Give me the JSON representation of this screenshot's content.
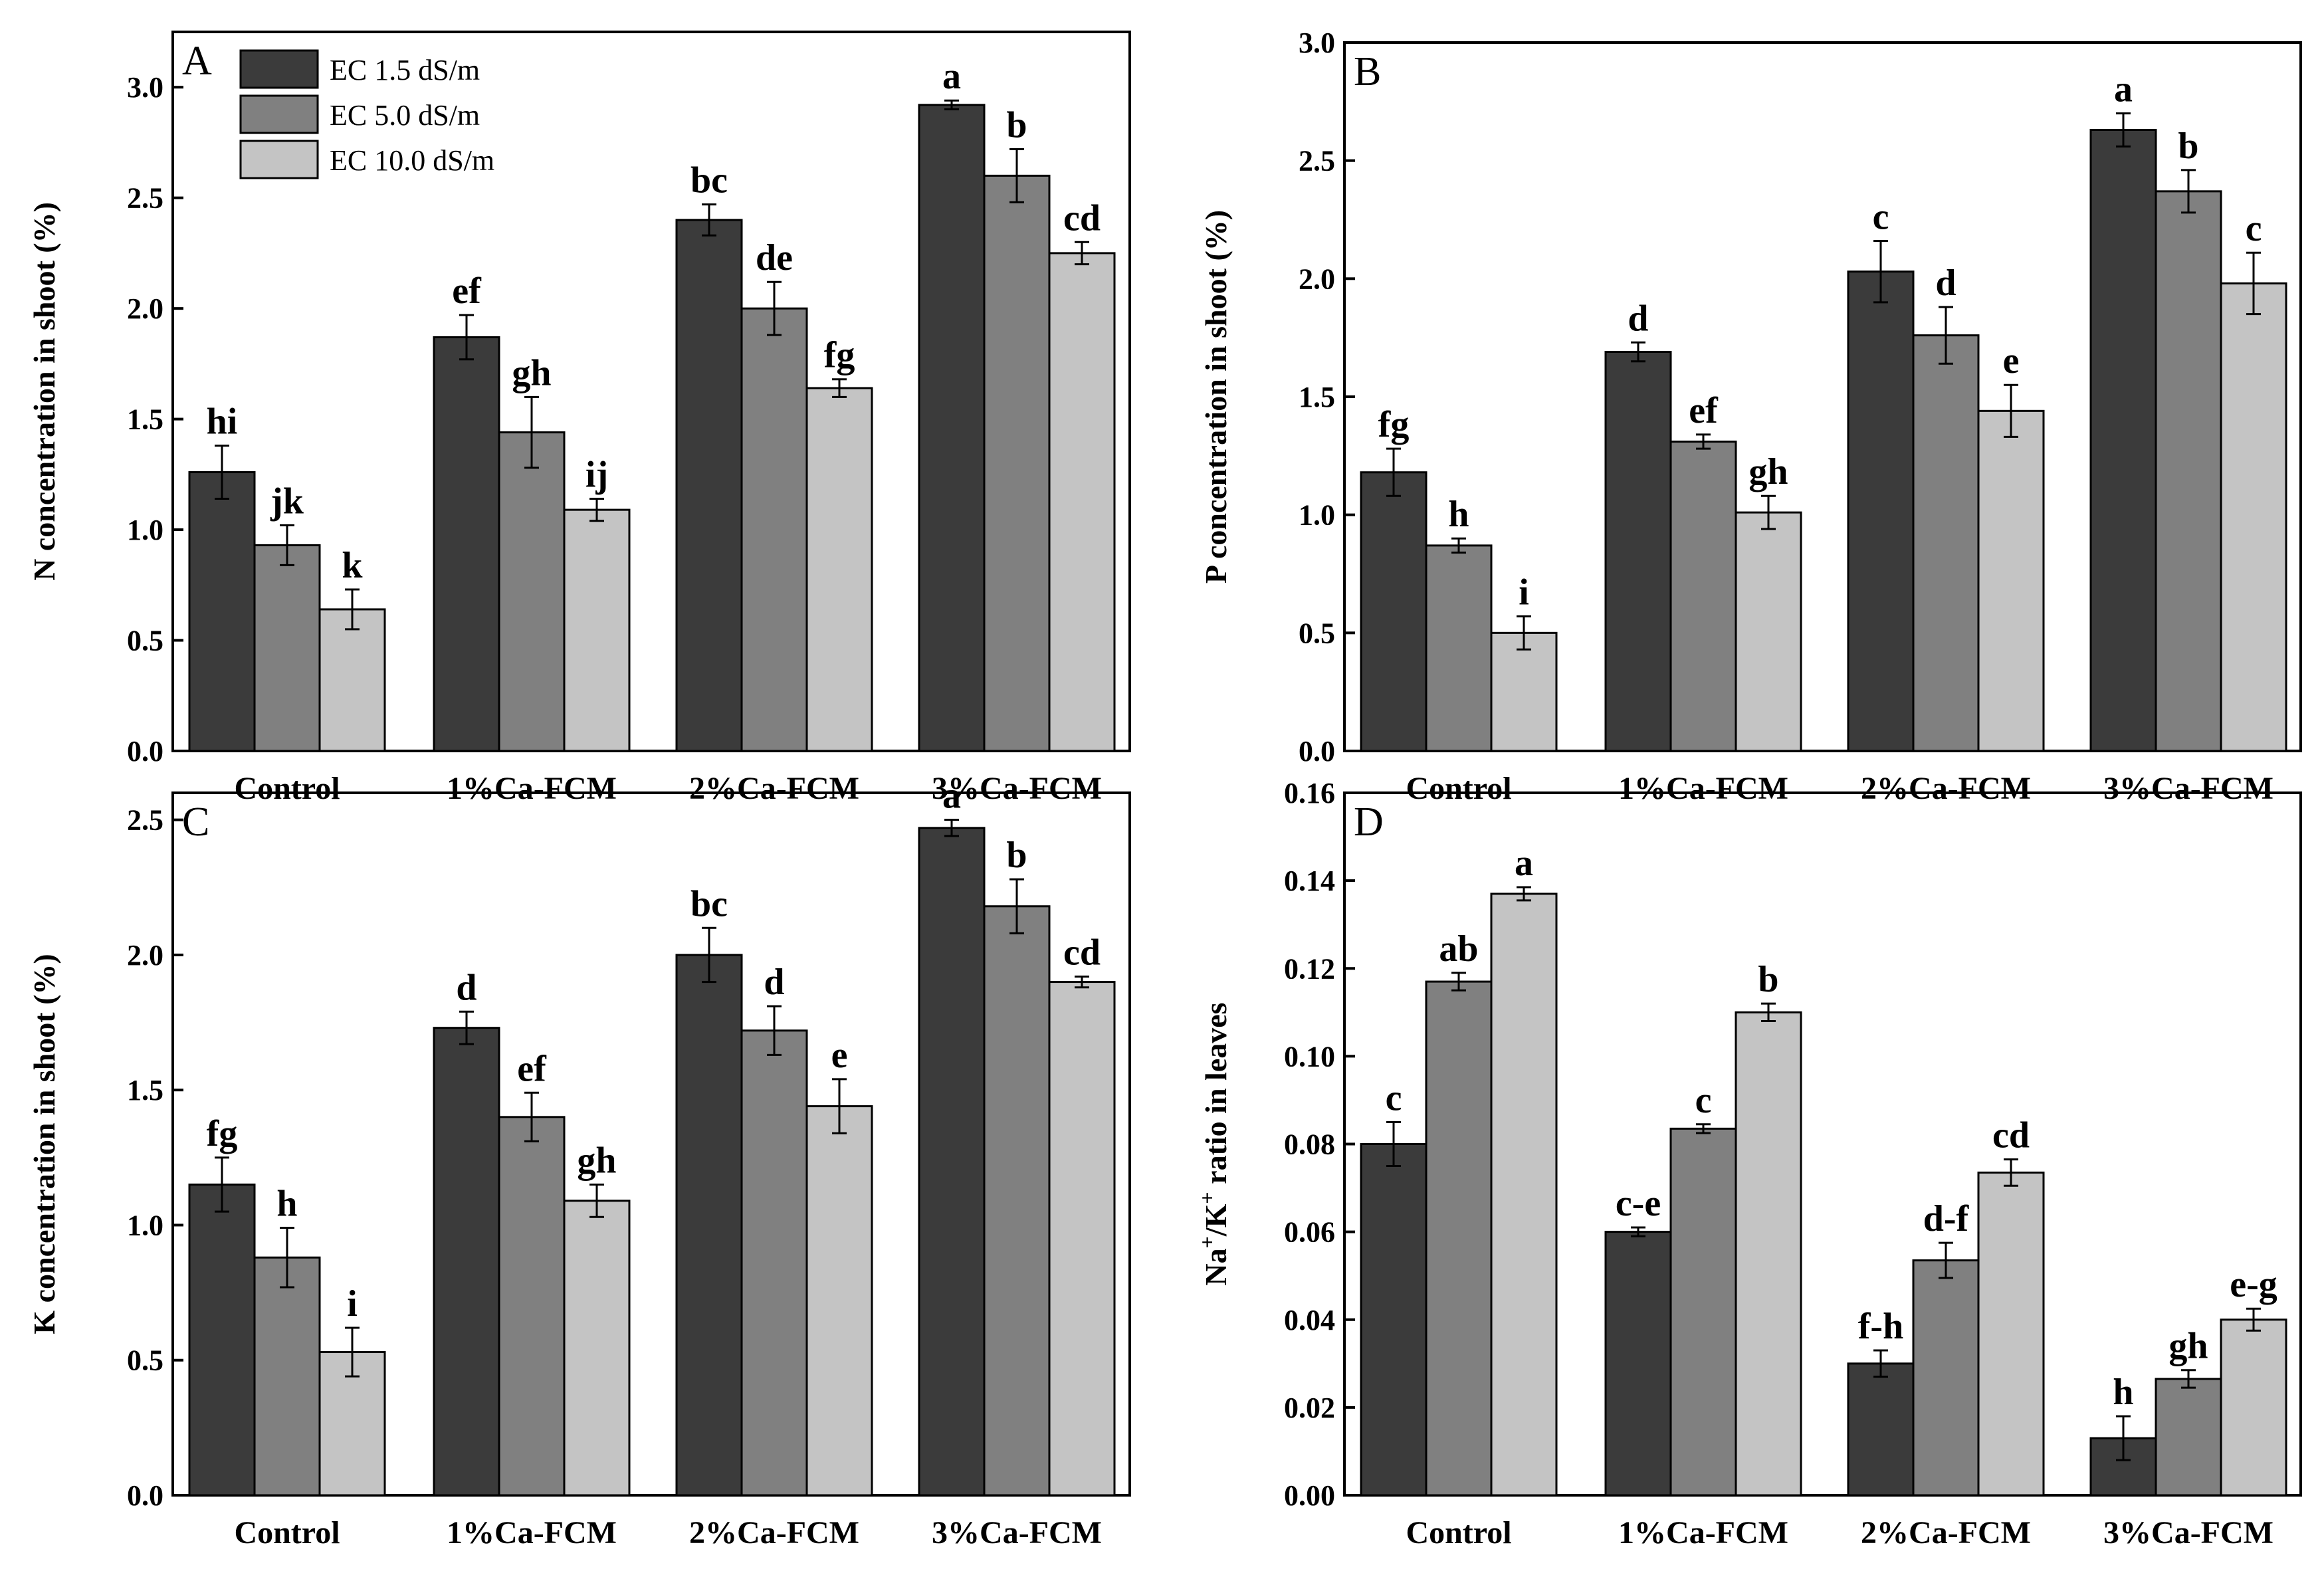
{
  "colors": {
    "s1": "#3b3b3b",
    "s2": "#808080",
    "s3": "#c4c4c4"
  },
  "legend": {
    "placement": "top-left-inside-panel-A",
    "entries": [
      "EC 1.5 dS/m",
      "EC 5.0 dS/m",
      "EC 10.0 dS/m"
    ]
  },
  "chart_data": [
    {
      "type": "bar",
      "panel": "A",
      "ylabel": "N concentration in shoot (%)",
      "ylim": [
        0,
        3.25
      ],
      "yticks": [
        "0.0",
        "0.5",
        "1.0",
        "1.5",
        "2.0",
        "2.5",
        "3.0"
      ],
      "yticks_v": [
        0,
        0.5,
        1.0,
        1.5,
        2.0,
        2.5,
        3.0
      ],
      "categories": [
        "Control",
        "1%Ca-FCM",
        "2%Ca-FCM",
        "3%Ca-FCM"
      ],
      "series": [
        {
          "name": "EC 1.5 dS/m",
          "values": [
            1.26,
            1.87,
            2.4,
            2.92
          ],
          "errors": [
            0.12,
            0.1,
            0.07,
            0.02
          ],
          "letters": [
            "hi",
            "ef",
            "bc",
            "a"
          ]
        },
        {
          "name": "EC 5.0 dS/m",
          "values": [
            0.93,
            1.44,
            2.0,
            2.6
          ],
          "errors": [
            0.09,
            0.16,
            0.12,
            0.12
          ],
          "letters": [
            "jk",
            "gh",
            "de",
            "b"
          ]
        },
        {
          "name": "EC 10.0 dS/m",
          "values": [
            0.64,
            1.09,
            1.64,
            2.25
          ],
          "errors": [
            0.09,
            0.05,
            0.04,
            0.05
          ],
          "letters": [
            "k",
            "ij",
            "fg",
            "cd"
          ]
        }
      ],
      "grid": false
    },
    {
      "type": "bar",
      "panel": "B",
      "ylabel": "P concentration in shoot (%)",
      "ylim": [
        0,
        3.0
      ],
      "yticks": [
        "0.0",
        "0.5",
        "1.0",
        "1.5",
        "2.0",
        "2.5",
        "3.0"
      ],
      "yticks_v": [
        0,
        0.5,
        1.0,
        1.5,
        2.0,
        2.5,
        3.0
      ],
      "categories": [
        "Control",
        "1%Ca-FCM",
        "2%Ca-FCM",
        "3%Ca-FCM"
      ],
      "series": [
        {
          "name": "EC 1.5 dS/m",
          "values": [
            1.18,
            1.69,
            2.03,
            2.63
          ],
          "errors": [
            0.1,
            0.04,
            0.13,
            0.07
          ],
          "letters": [
            "fg",
            "d",
            "c",
            "a"
          ]
        },
        {
          "name": "EC 5.0 dS/m",
          "values": [
            0.87,
            1.31,
            1.76,
            2.37
          ],
          "errors": [
            0.03,
            0.03,
            0.12,
            0.09
          ],
          "letters": [
            "h",
            "ef",
            "d",
            "b"
          ]
        },
        {
          "name": "EC 10.0 dS/m",
          "values": [
            0.5,
            1.01,
            1.44,
            1.98
          ],
          "errors": [
            0.07,
            0.07,
            0.11,
            0.13
          ],
          "letters": [
            "i",
            "gh",
            "e",
            "c"
          ]
        }
      ],
      "grid": false
    },
    {
      "type": "bar",
      "panel": "C",
      "ylabel": "K concentration in shoot (%)",
      "ylim": [
        0,
        2.6
      ],
      "yticks": [
        "0.0",
        "0.5",
        "1.0",
        "1.5",
        "2.0",
        "2.5"
      ],
      "yticks_v": [
        0,
        0.5,
        1.0,
        1.5,
        2.0,
        2.5
      ],
      "categories": [
        "Control",
        "1%Ca-FCM",
        "2%Ca-FCM",
        "3%Ca-FCM"
      ],
      "series": [
        {
          "name": "EC 1.5 dS/m",
          "values": [
            1.15,
            1.73,
            2.0,
            2.47
          ],
          "errors": [
            0.1,
            0.06,
            0.1,
            0.03
          ],
          "letters": [
            "fg",
            "d",
            "bc",
            "a"
          ]
        },
        {
          "name": "EC 5.0 dS/m",
          "values": [
            0.88,
            1.4,
            1.72,
            2.18
          ],
          "errors": [
            0.11,
            0.09,
            0.09,
            0.1
          ],
          "letters": [
            "h",
            "ef",
            "d",
            "b"
          ]
        },
        {
          "name": "EC 10.0 dS/m",
          "values": [
            0.53,
            1.09,
            1.44,
            1.9
          ],
          "errors": [
            0.09,
            0.06,
            0.1,
            0.02
          ],
          "letters": [
            "i",
            "gh",
            "e",
            "cd"
          ]
        }
      ],
      "grid": false
    },
    {
      "type": "bar",
      "panel": "D",
      "ylabel_main": "Na",
      "ylabel_sup1": "+",
      "ylabel_mid": "/K",
      "ylabel_sup2": "+",
      "ylabel_tail": " ratio in leaves",
      "ylim": [
        0,
        0.16
      ],
      "yticks": [
        "0.00",
        "0.02",
        "0.04",
        "0.06",
        "0.08",
        "0.10",
        "0.12",
        "0.14",
        "0.16"
      ],
      "yticks_v": [
        0,
        0.02,
        0.04,
        0.06,
        0.08,
        0.1,
        0.12,
        0.14,
        0.16
      ],
      "categories": [
        "Control",
        "1%Ca-FCM",
        "2%Ca-FCM",
        "3%Ca-FCM"
      ],
      "series": [
        {
          "name": "EC 1.5 dS/m",
          "values": [
            0.08,
            0.06,
            0.03,
            0.013
          ],
          "errors": [
            0.005,
            0.001,
            0.003,
            0.005
          ],
          "letters": [
            "c",
            "c-e",
            "f-h",
            "h"
          ]
        },
        {
          "name": "EC 5.0 dS/m",
          "values": [
            0.117,
            0.0835,
            0.0535,
            0.0265
          ],
          "errors": [
            0.002,
            0.001,
            0.004,
            0.002
          ],
          "letters": [
            "ab",
            "c",
            "d-f",
            "gh"
          ]
        },
        {
          "name": "EC 10.0 dS/m",
          "values": [
            0.137,
            0.11,
            0.0735,
            0.04
          ],
          "errors": [
            0.0015,
            0.002,
            0.003,
            0.0025
          ],
          "letters": [
            "a",
            "b",
            "cd",
            "e-g"
          ]
        }
      ],
      "grid": false
    }
  ]
}
